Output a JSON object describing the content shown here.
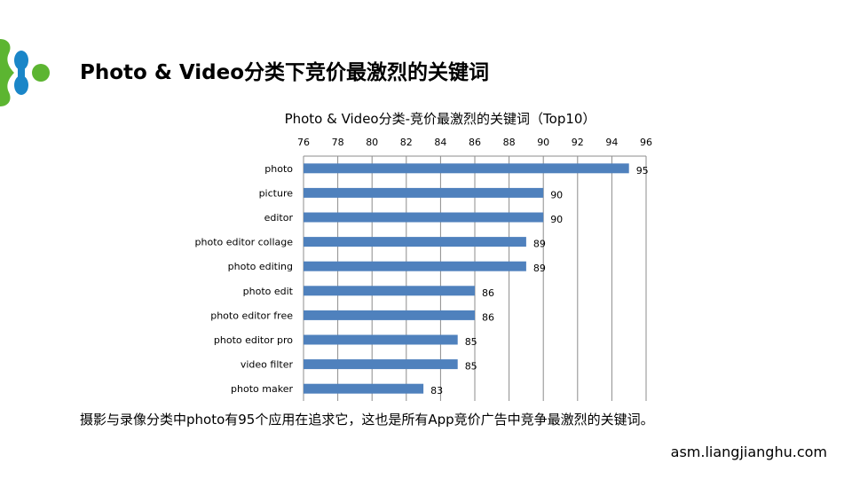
{
  "slide": {
    "title": "Photo & Video分类下竞价最激烈的关键词",
    "caption": "摄影与录像分类中photo有95个应用在追求它，这也是所有App竞价广告中竞争最激烈的关键词。",
    "site": "asm.liangjianghu.com"
  },
  "logo": {
    "colors": [
      "#5cb531",
      "#1a86c8"
    ]
  },
  "chart_data": {
    "type": "bar",
    "orientation": "horizontal",
    "title": "Photo & Video分类-竞价最激烈的关键词（Top10）",
    "categories": [
      "photo",
      "picture",
      "editor",
      "photo editor collage",
      "photo editing",
      "photo edit",
      "photo editor free",
      "photo editor pro",
      "video filter",
      "photo maker"
    ],
    "values": [
      95,
      90,
      90,
      89,
      89,
      86,
      86,
      85,
      85,
      83
    ],
    "xlim": [
      76,
      96
    ],
    "xticks": [
      76,
      78,
      80,
      82,
      84,
      86,
      88,
      90,
      92,
      94,
      96
    ],
    "axis_position": "top",
    "grid": true,
    "data_labels": true,
    "bar_color": "#4f81bd"
  }
}
